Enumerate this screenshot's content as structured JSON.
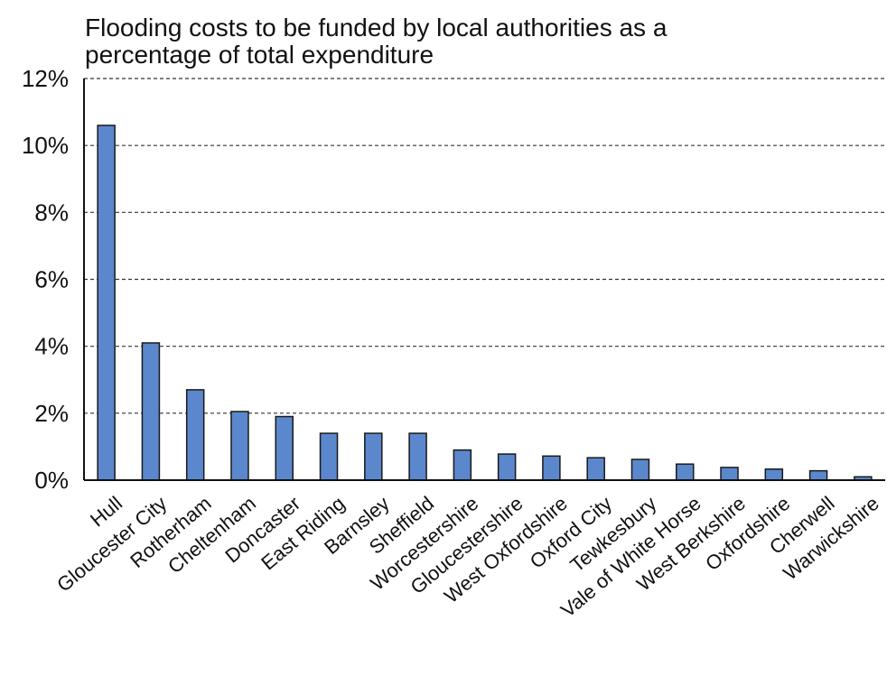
{
  "chart_data": {
    "type": "bar",
    "title_lines": [
      "Flooding costs to be funded by local authorities as a",
      "percentage of total expenditure"
    ],
    "categories": [
      "Hull",
      "Gloucester City",
      "Rotherham",
      "Cheltenham",
      "Doncaster",
      "East Riding",
      "Barnsley",
      "Sheffield",
      "Worcestershire",
      "Gloucestershire",
      "West Oxfordshire",
      "Oxford City",
      "Tewkesbury",
      "Vale of White Horse",
      "West Berkshire",
      "Oxfordshire",
      "Cherwell",
      "Warwickshire"
    ],
    "values": [
      10.6,
      4.1,
      2.7,
      2.05,
      1.9,
      1.4,
      1.4,
      1.4,
      0.9,
      0.78,
      0.72,
      0.67,
      0.62,
      0.48,
      0.38,
      0.33,
      0.28,
      0.1
    ],
    "ylim": [
      0,
      12
    ],
    "yticks": [
      0,
      2,
      4,
      6,
      8,
      10,
      12
    ],
    "ytick_labels": [
      "0%",
      "2%",
      "4%",
      "6%",
      "8%",
      "10%",
      "12%"
    ],
    "xlabel": "",
    "ylabel": "",
    "grid": "horizontal-dashed",
    "bar_color": "#5b87cc",
    "legend": "none"
  }
}
